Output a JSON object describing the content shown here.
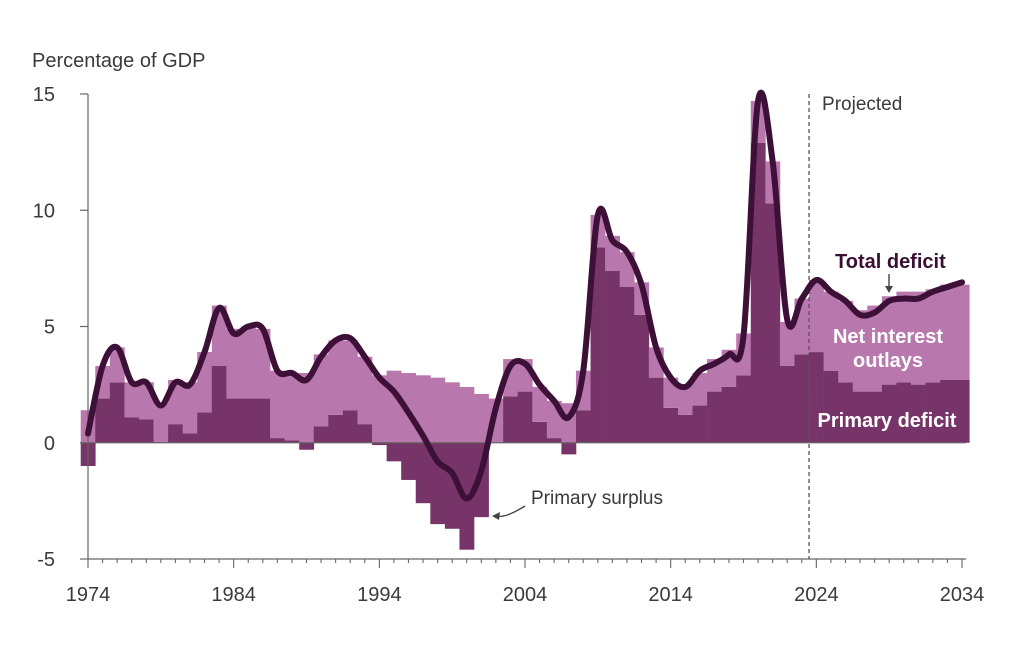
{
  "chart_data": {
    "type": "bar",
    "ylabel": "Percentage of GDP",
    "ylim": [
      -5,
      15
    ],
    "yticks": [
      -5,
      0,
      5,
      10,
      15
    ],
    "xlim": [
      1974,
      2034
    ],
    "xticks": [
      1974,
      1984,
      1994,
      2004,
      2014,
      2024,
      2034
    ],
    "projected_from": 2024,
    "projected_label": "Projected",
    "years": [
      1974,
      1975,
      1976,
      1977,
      1978,
      1979,
      1980,
      1981,
      1982,
      1983,
      1984,
      1985,
      1986,
      1987,
      1988,
      1989,
      1990,
      1991,
      1992,
      1993,
      1994,
      1995,
      1996,
      1997,
      1998,
      1999,
      2000,
      2001,
      2002,
      2003,
      2004,
      2005,
      2006,
      2007,
      2008,
      2009,
      2010,
      2011,
      2012,
      2013,
      2014,
      2015,
      2016,
      2017,
      2018,
      2019,
      2020,
      2021,
      2022,
      2023,
      2024,
      2025,
      2026,
      2027,
      2028,
      2029,
      2030,
      2031,
      2032,
      2033,
      2034
    ],
    "series": [
      {
        "name": "Primary deficit",
        "color": "#773468",
        "values": [
          -1.0,
          1.9,
          2.6,
          1.1,
          1.0,
          0.0,
          0.8,
          0.4,
          1.3,
          3.3,
          1.9,
          1.9,
          1.9,
          0.2,
          0.1,
          -0.3,
          0.7,
          1.2,
          1.4,
          0.8,
          -0.1,
          -0.8,
          -1.6,
          -2.6,
          -3.5,
          -3.7,
          -4.6,
          -3.2,
          0.0,
          2.0,
          2.2,
          0.9,
          0.2,
          -0.5,
          1.4,
          8.4,
          7.4,
          6.7,
          5.5,
          2.8,
          1.5,
          1.2,
          1.6,
          2.2,
          2.4,
          2.9,
          12.9,
          10.3,
          3.3,
          3.8,
          3.9,
          3.1,
          2.6,
          2.2,
          2.2,
          2.5,
          2.6,
          2.5,
          2.6,
          2.7,
          2.7
        ]
      },
      {
        "name": "Net interest outlays",
        "color": "#b877ad",
        "values": [
          1.4,
          1.4,
          1.5,
          1.5,
          1.6,
          1.7,
          1.9,
          2.2,
          2.6,
          2.6,
          3.0,
          3.1,
          3.0,
          2.9,
          2.9,
          3.0,
          3.1,
          3.2,
          3.0,
          2.9,
          2.9,
          3.1,
          3.0,
          2.9,
          2.8,
          2.6,
          2.4,
          2.1,
          1.9,
          1.6,
          1.4,
          1.5,
          1.6,
          1.7,
          1.7,
          1.4,
          1.5,
          1.5,
          1.4,
          1.3,
          1.3,
          1.3,
          1.4,
          1.4,
          1.6,
          1.8,
          1.8,
          1.8,
          1.9,
          2.4,
          3.1,
          3.4,
          3.5,
          3.5,
          3.7,
          3.8,
          3.9,
          4.0,
          4.0,
          4.1,
          4.1
        ]
      },
      {
        "name": "Total deficit",
        "color": "#3d1038",
        "values": [
          0.4,
          3.3,
          4.1,
          2.6,
          2.6,
          1.6,
          2.6,
          2.5,
          3.9,
          5.8,
          4.7,
          5.0,
          4.9,
          3.1,
          3.0,
          2.7,
          3.7,
          4.4,
          4.5,
          3.7,
          2.8,
          2.2,
          1.3,
          0.3,
          -0.8,
          -1.3,
          -2.4,
          -1.2,
          1.5,
          3.3,
          3.4,
          2.5,
          1.8,
          1.1,
          3.1,
          9.8,
          8.7,
          8.2,
          6.8,
          4.1,
          2.8,
          2.4,
          3.1,
          3.4,
          3.8,
          4.6,
          14.7,
          12.1,
          5.3,
          6.2,
          7.0,
          6.5,
          6.1,
          5.5,
          5.6,
          6.1,
          6.2,
          6.2,
          6.5,
          6.7,
          6.9
        ]
      }
    ],
    "annotations": {
      "primary_surplus": "Primary surplus",
      "total_deficit": "Total deficit",
      "net_interest_line1": "Net interest",
      "net_interest_line2": "outlays",
      "primary_deficit": "Primary deficit"
    }
  }
}
